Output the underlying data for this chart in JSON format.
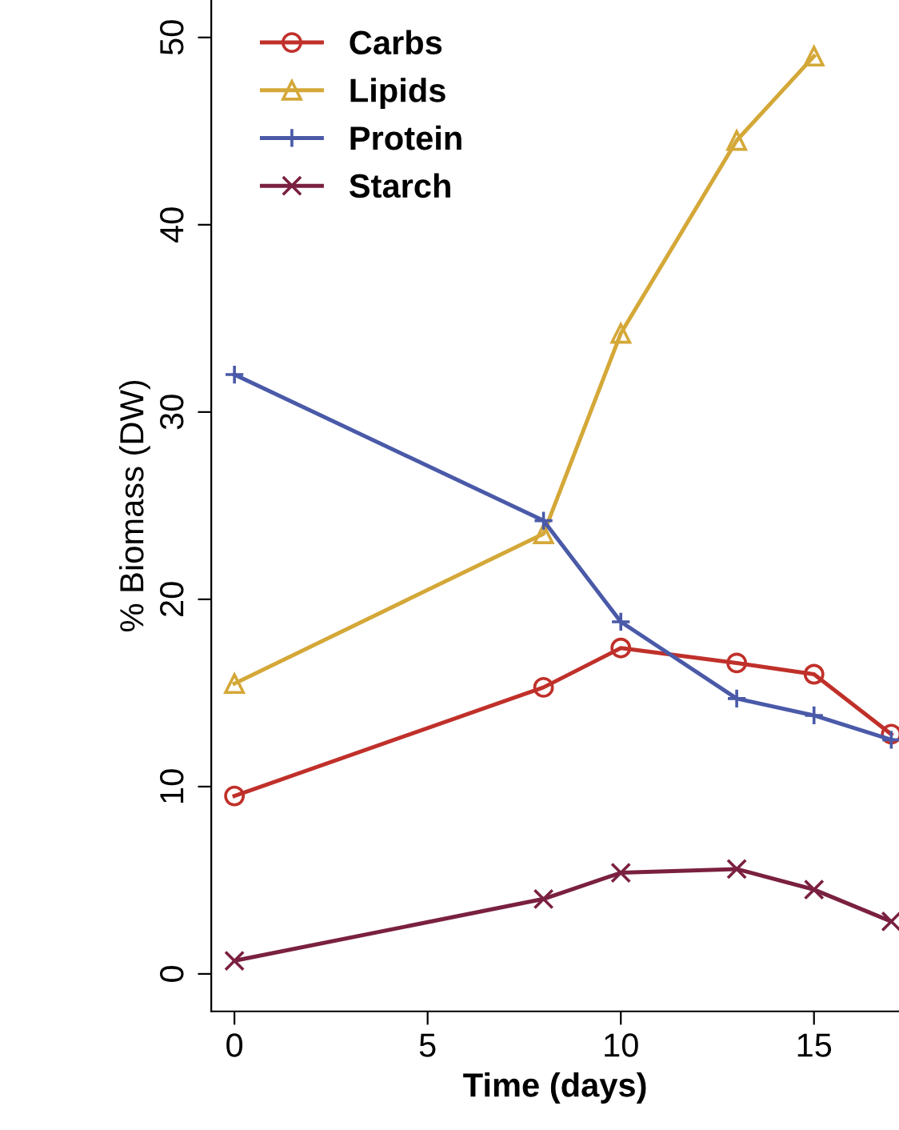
{
  "chart_data": {
    "type": "line",
    "xlabel": "Time (days)",
    "ylabel": "% Biomass (DW)",
    "x": [
      0,
      8,
      10,
      13,
      15,
      17
    ],
    "series": [
      {
        "name": "Carbs",
        "color": "#c0302a",
        "marker": "circle",
        "values": [
          9.5,
          15.3,
          17.4,
          16.6,
          16.0,
          12.8
        ]
      },
      {
        "name": "Lipids",
        "color": "#d4a838",
        "marker": "triangle",
        "values": [
          15.5,
          23.5,
          34.2,
          44.5,
          49.0,
          null
        ]
      },
      {
        "name": "Protein",
        "color": "#4a5aa8",
        "marker": "plus",
        "values": [
          32.0,
          24.2,
          18.8,
          14.7,
          13.8,
          12.5
        ]
      },
      {
        "name": "Starch",
        "color": "#7a2040",
        "marker": "cross",
        "values": [
          0.7,
          4.0,
          5.4,
          5.6,
          4.5,
          2.8
        ]
      }
    ],
    "xlim": [
      -0.6,
      17.2
    ],
    "ylim": [
      -2,
      52
    ],
    "xticks": [
      0,
      5,
      10,
      15
    ],
    "yticks": [
      0,
      10,
      20,
      30,
      40,
      50
    ],
    "legend": "top left",
    "grid": false,
    "line_style": "solid"
  }
}
